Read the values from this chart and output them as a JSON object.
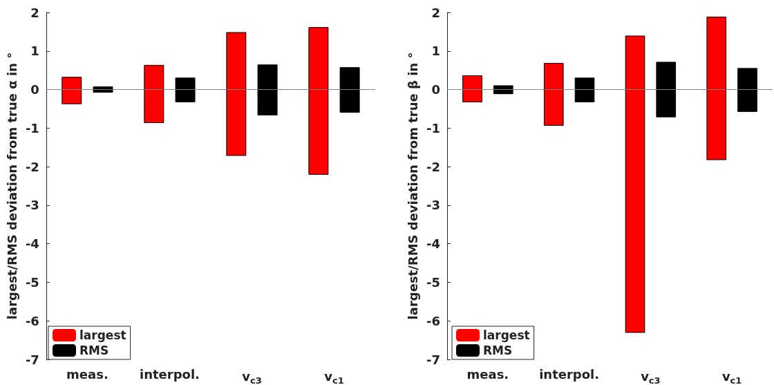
{
  "chart_data": [
    {
      "type": "bar",
      "ylabel": "largest/RMS deviation from true α in °",
      "categories": [
        "meas.",
        "interpol.",
        "v$_{c3}$",
        "v$_{c1}$"
      ],
      "series": [
        {
          "name": "largest",
          "color": "#ff0000",
          "base": [
            -0.37,
            -0.86,
            -1.71,
            -2.2
          ],
          "values": [
            0.69,
            1.49,
            3.19,
            3.81
          ]
        },
        {
          "name": "RMS",
          "color": "#000000",
          "base": [
            -0.07,
            -0.32,
            -0.66,
            -0.59
          ],
          "values": [
            0.14,
            0.62,
            1.3,
            1.16
          ]
        }
      ],
      "ylim": [
        -7,
        2
      ],
      "yticks": [
        -7,
        -6,
        -5,
        -4,
        -3,
        -2,
        -1,
        0,
        1,
        2
      ],
      "grid": false,
      "legend": "bottom left",
      "ref_lines": [
        {
          "axis": "y",
          "value": 0,
          "color": "#808080"
        }
      ]
    },
    {
      "type": "bar",
      "ylabel": "largest/RMS deviation from true β in °",
      "categories": [
        "meas.",
        "interpol.",
        "v$_{c3}$",
        "v$_{c1}$"
      ],
      "series": [
        {
          "name": "largest",
          "color": "#ff0000",
          "base": [
            -0.32,
            -0.93,
            -6.3,
            -1.82
          ],
          "values": [
            0.68,
            1.61,
            7.69,
            3.7
          ]
        },
        {
          "name": "RMS",
          "color": "#000000",
          "base": [
            -0.11,
            -0.32,
            -0.71,
            -0.57
          ],
          "values": [
            0.21,
            0.62,
            1.42,
            1.12
          ]
        }
      ],
      "ylim": [
        -7,
        2
      ],
      "yticks": [
        -7,
        -6,
        -5,
        -4,
        -3,
        -2,
        -1,
        0,
        1,
        2
      ],
      "grid": false,
      "legend": "bottom left",
      "ref_lines": [
        {
          "axis": "y",
          "value": 0,
          "color": "#808080"
        }
      ]
    }
  ]
}
